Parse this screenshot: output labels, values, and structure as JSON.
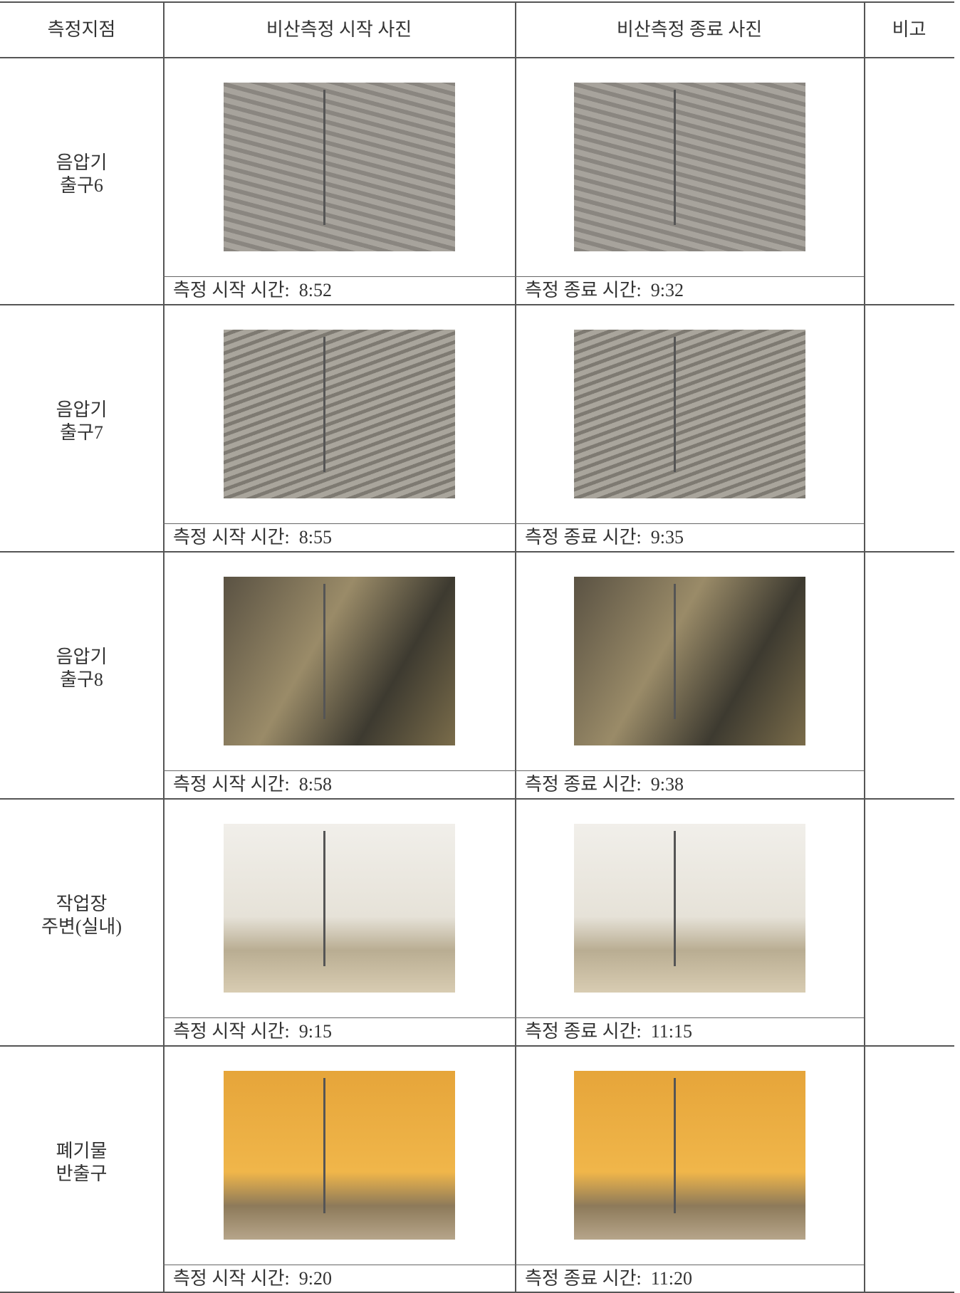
{
  "table": {
    "headers": [
      "측정지점",
      "비산측정 시작 사진",
      "비산측정 종료 사진",
      "비고"
    ],
    "rows": [
      {
        "location": [
          "음압기",
          "출구6"
        ],
        "start_caption": "측정 시작 시간:  8:52",
        "end_caption": "측정 종료 시간:  9:32"
      },
      {
        "location": [
          "음압기",
          "출구7"
        ],
        "start_caption": "측정 시작 시간:  8:55",
        "end_caption": "측정 종료 시간:  9:35"
      },
      {
        "location": [
          "음압기",
          "출구8"
        ],
        "start_caption": "측정 시작 시간:  8:58",
        "end_caption": "측정 종료 시간:  9:38"
      },
      {
        "location": [
          "작업장",
          "주변(실내)"
        ],
        "start_caption": "측정 시작 시간:  9:15",
        "end_caption": "측정 종료 시간:  11:15"
      },
      {
        "location": [
          "폐기물",
          "반출구"
        ],
        "start_caption": "측정 시작 시간:  9:20",
        "end_caption": "측정 종료 시간:  11:20"
      }
    ]
  }
}
